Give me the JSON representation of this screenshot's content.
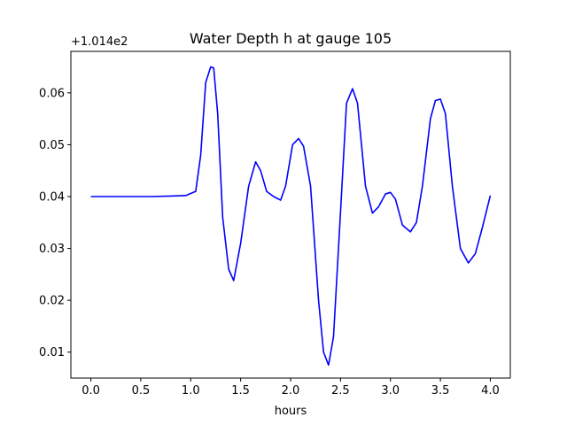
{
  "chart_data": {
    "type": "line",
    "title": "Water Depth h at gauge 105",
    "xlabel": "hours",
    "ylabel": "",
    "y_offset_label": "+1.014e2",
    "xlim": [
      -0.2,
      4.2
    ],
    "ylim": [
      0.005,
      0.068
    ],
    "x_ticks": [
      0.0,
      0.5,
      1.0,
      1.5,
      2.0,
      2.5,
      3.0,
      3.5,
      4.0
    ],
    "x_tick_labels": [
      "0.0",
      "0.5",
      "1.0",
      "1.5",
      "2.0",
      "2.5",
      "3.0",
      "3.5",
      "4.0"
    ],
    "y_ticks": [
      0.01,
      0.02,
      0.03,
      0.04,
      0.05,
      0.06
    ],
    "y_tick_labels": [
      "0.01",
      "0.02",
      "0.03",
      "0.04",
      "0.05",
      "0.06"
    ],
    "grid": false,
    "series": [
      {
        "color": "#0000ff",
        "x": [
          0.0,
          0.2,
          0.4,
          0.6,
          0.8,
          0.95,
          1.05,
          1.1,
          1.15,
          1.2,
          1.23,
          1.27,
          1.32,
          1.38,
          1.43,
          1.5,
          1.58,
          1.65,
          1.7,
          1.76,
          1.83,
          1.9,
          1.95,
          2.02,
          2.08,
          2.13,
          2.2,
          2.28,
          2.33,
          2.38,
          2.43,
          2.5,
          2.56,
          2.62,
          2.67,
          2.75,
          2.82,
          2.88,
          2.95,
          3.0,
          3.05,
          3.12,
          3.2,
          3.26,
          3.32,
          3.4,
          3.45,
          3.5,
          3.55,
          3.62,
          3.7,
          3.78,
          3.85,
          3.92,
          4.0
        ],
        "y": [
          0.04,
          0.04,
          0.04,
          0.04,
          0.0401,
          0.0402,
          0.041,
          0.048,
          0.062,
          0.065,
          0.0648,
          0.056,
          0.036,
          0.026,
          0.0238,
          0.031,
          0.042,
          0.0467,
          0.045,
          0.041,
          0.04,
          0.0393,
          0.042,
          0.05,
          0.0512,
          0.0497,
          0.042,
          0.02,
          0.01,
          0.0075,
          0.013,
          0.037,
          0.058,
          0.0608,
          0.058,
          0.042,
          0.0368,
          0.038,
          0.0405,
          0.0408,
          0.0395,
          0.0345,
          0.0332,
          0.035,
          0.042,
          0.055,
          0.0585,
          0.0588,
          0.056,
          0.042,
          0.03,
          0.0272,
          0.029,
          0.034,
          0.0402
        ]
      }
    ]
  }
}
